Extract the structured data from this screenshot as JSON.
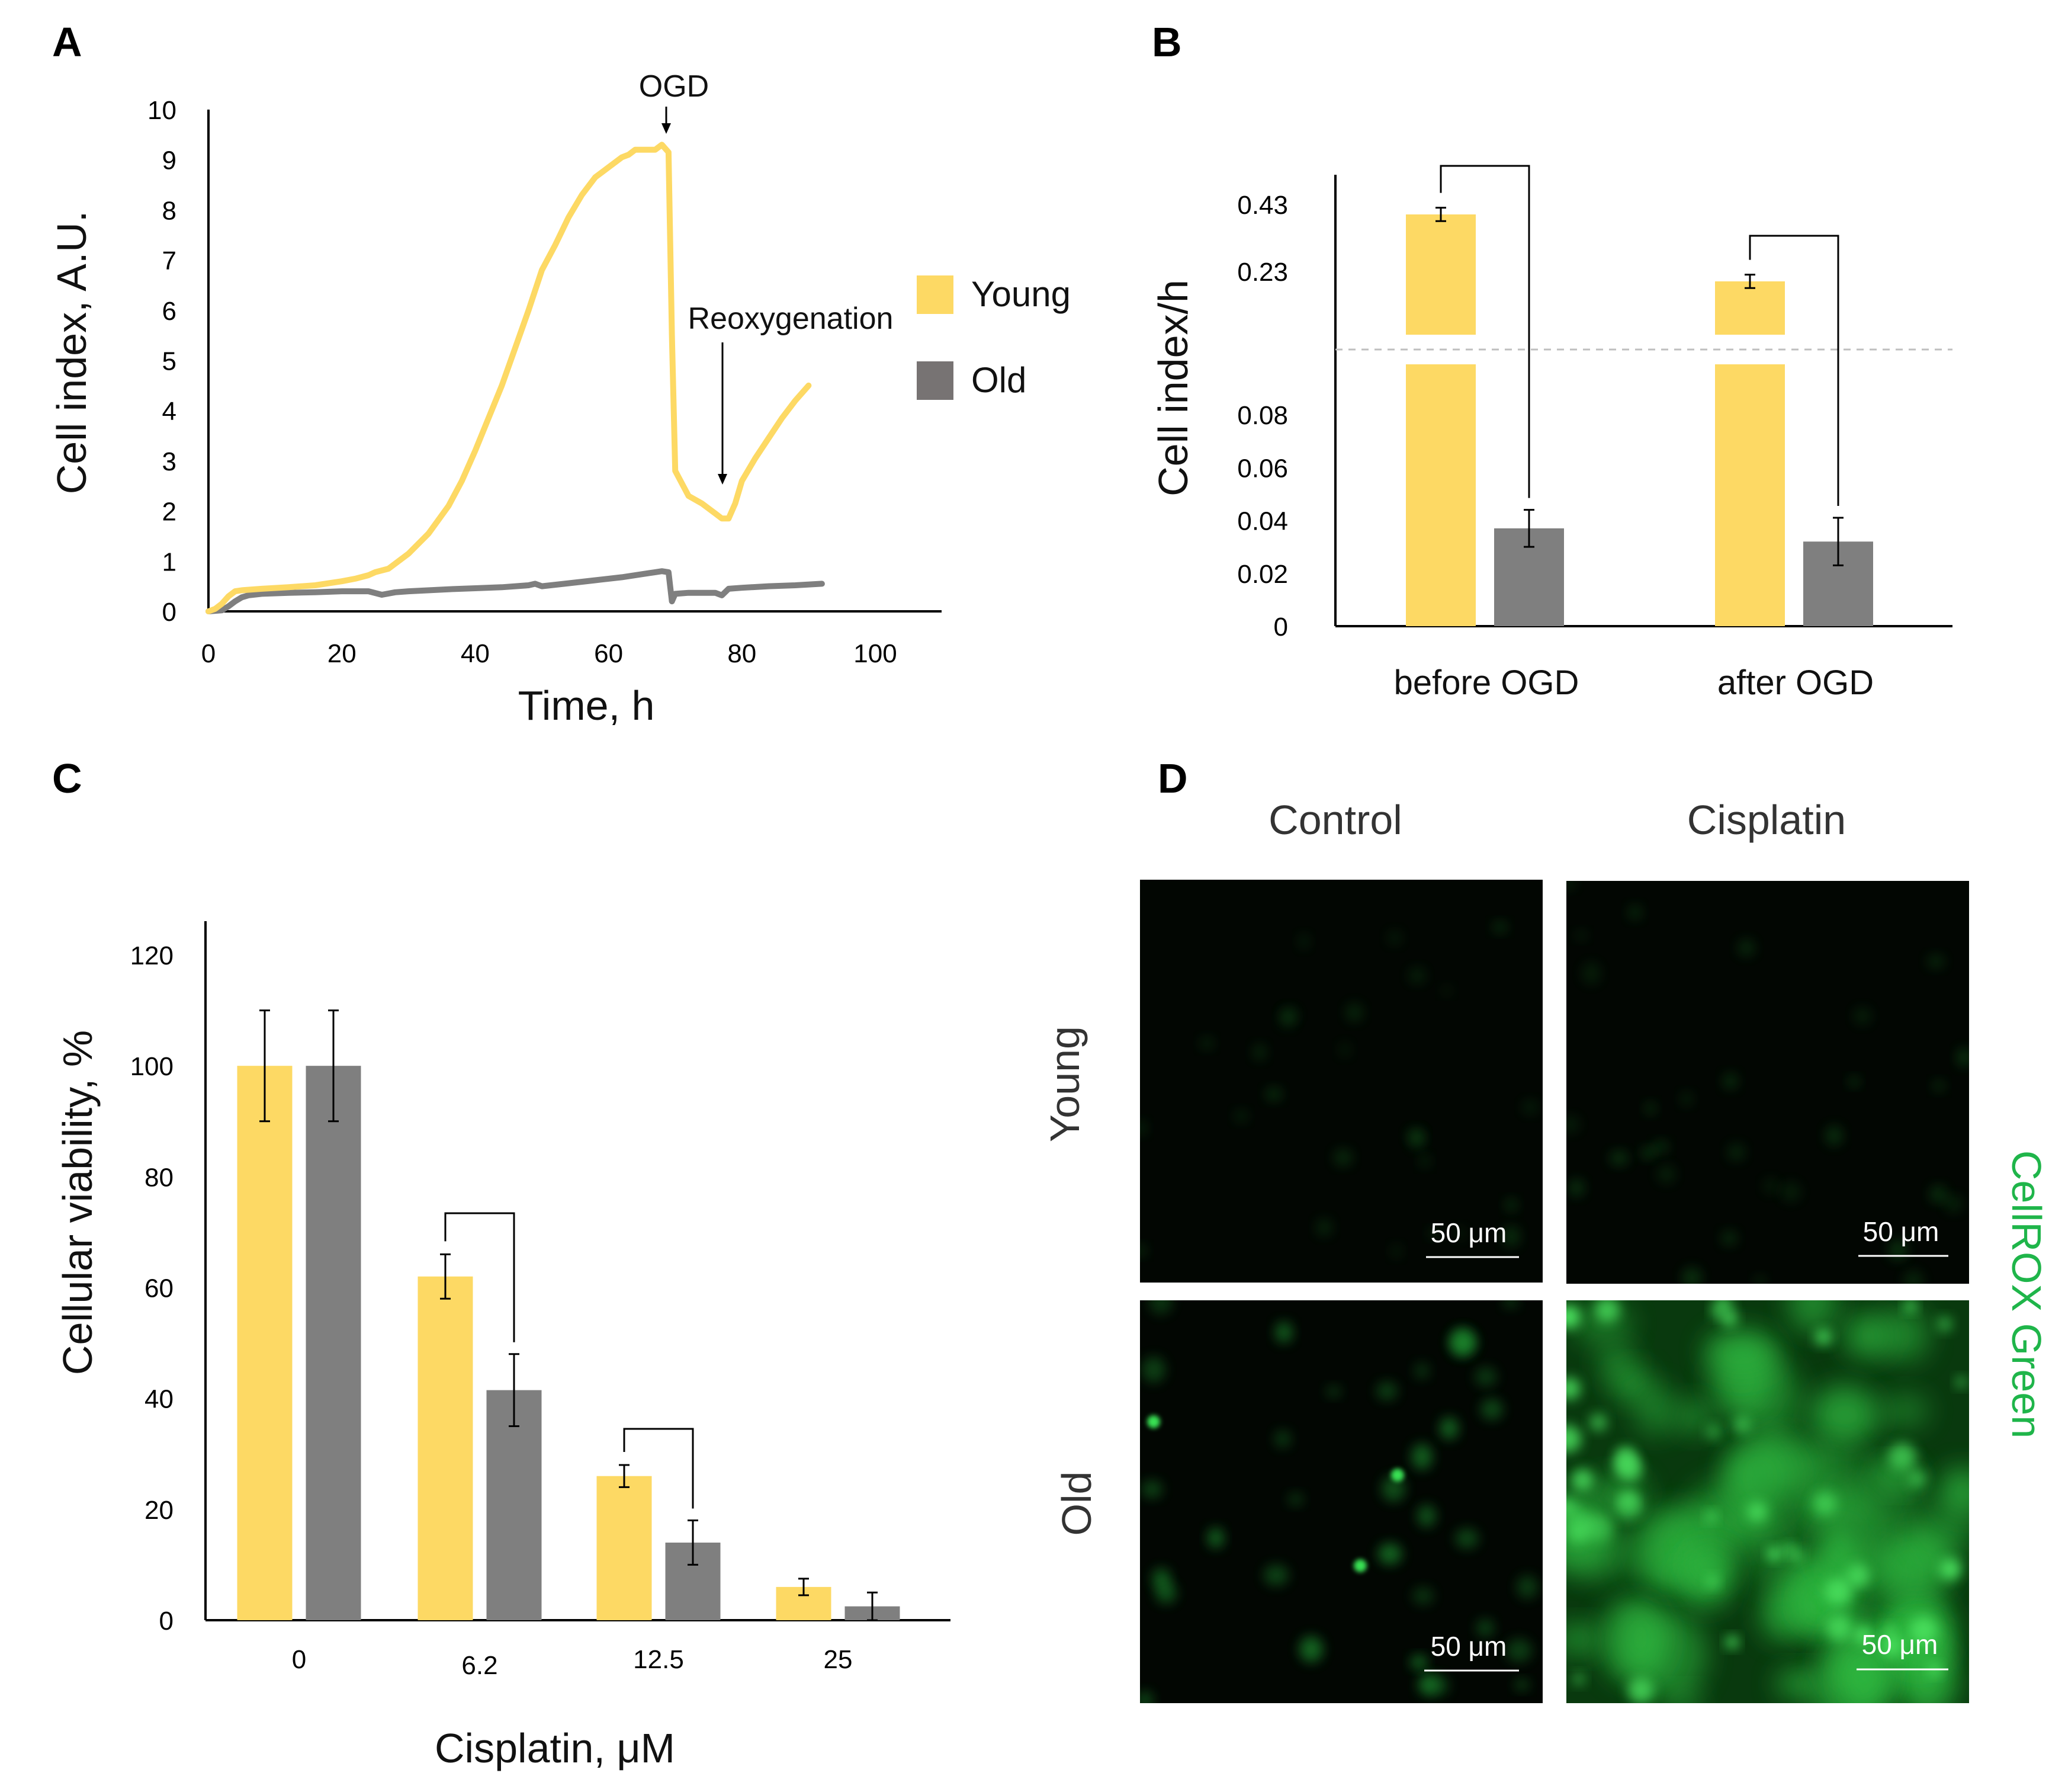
{
  "colors": {
    "young": "#FDD964",
    "old": "#7F7F7F",
    "old_line": "#7F7F7F",
    "young_line": "#FDD964",
    "axis": "#000000",
    "error": "#000000",
    "dashed": "#BFBFBF",
    "cellrox": "#1FB54A",
    "micro_bg": "#020602"
  },
  "panels": {
    "a": "A",
    "b": "B",
    "c": "C",
    "d": "D"
  },
  "chart_data": [
    {
      "id": "A",
      "type": "line",
      "xlabel": "Time, h",
      "ylabel": "Cell index, A.U.",
      "xlim": [
        0,
        110
      ],
      "ylim": [
        0,
        10
      ],
      "xticks": [
        "0",
        "20",
        "40",
        "60",
        "80",
        "100"
      ],
      "yticks": [
        "0",
        "1",
        "2",
        "3",
        "4",
        "5",
        "6",
        "7",
        "8",
        "9",
        "10"
      ],
      "series": [
        {
          "name": "Young",
          "color": "#FDD964",
          "x": [
            0,
            1,
            2,
            3,
            4,
            5,
            8,
            12,
            16,
            20,
            22,
            24,
            25,
            27,
            28,
            30,
            33,
            36,
            38,
            40,
            42,
            44,
            46,
            48,
            50,
            52,
            54,
            56,
            58,
            60,
            62,
            63,
            64,
            66,
            67,
            68,
            69,
            69.5,
            70,
            72,
            74,
            76,
            77,
            78,
            79,
            80,
            82,
            84,
            86,
            88,
            90
          ],
          "y": [
            0,
            0.05,
            0.15,
            0.3,
            0.4,
            0.42,
            0.45,
            0.48,
            0.52,
            0.6,
            0.65,
            0.72,
            0.78,
            0.85,
            0.95,
            1.15,
            1.55,
            2.1,
            2.6,
            3.2,
            3.85,
            4.5,
            5.25,
            6.0,
            6.8,
            7.3,
            7.85,
            8.3,
            8.65,
            8.85,
            9.05,
            9.1,
            9.2,
            9.2,
            9.2,
            9.3,
            9.15,
            5.5,
            2.8,
            2.3,
            2.15,
            1.95,
            1.85,
            1.85,
            2.15,
            2.6,
            3.05,
            3.45,
            3.85,
            4.2,
            4.5
          ]
        },
        {
          "name": "Old",
          "color": "#7F7F7F",
          "x": [
            0,
            2,
            3,
            4,
            5,
            6,
            8,
            12,
            16,
            20,
            24,
            26,
            28,
            30,
            36,
            40,
            44,
            48,
            49,
            50,
            54,
            58,
            62,
            66,
            67,
            68,
            69,
            69.5,
            70,
            72,
            76,
            77,
            78,
            80,
            84,
            88,
            92
          ],
          "y": [
            0,
            0.02,
            0.1,
            0.2,
            0.28,
            0.32,
            0.35,
            0.37,
            0.38,
            0.4,
            0.4,
            0.33,
            0.38,
            0.4,
            0.44,
            0.46,
            0.48,
            0.52,
            0.55,
            0.5,
            0.56,
            0.62,
            0.68,
            0.76,
            0.78,
            0.8,
            0.78,
            0.2,
            0.35,
            0.37,
            0.37,
            0.32,
            0.45,
            0.47,
            0.5,
            0.52,
            0.55
          ]
        }
      ],
      "legend": "right",
      "annotations": [
        {
          "text": "OGD",
          "x": 69
        },
        {
          "text": "Reoxygenation",
          "x": 77
        }
      ]
    },
    {
      "id": "B",
      "type": "bar",
      "ylabel": "Cell index/h",
      "categories": [
        "before OGD",
        "after OGD"
      ],
      "yticks": [
        "0",
        "0.02",
        "0.04",
        "0.06",
        "0.08",
        "0.23",
        "0.43"
      ],
      "y_axis_break": true,
      "series": [
        {
          "name": "Young",
          "values": [
            0.4,
            0.2
          ],
          "errors": [
            0.02,
            0.02
          ],
          "color": "#FDD964"
        },
        {
          "name": "Old",
          "values": [
            0.037,
            0.032
          ],
          "errors": [
            0.007,
            0.009
          ],
          "color": "#7F7F7F"
        }
      ],
      "significance_brackets": [
        {
          "category": "before OGD"
        },
        {
          "category": "after OGD"
        }
      ]
    },
    {
      "id": "C",
      "type": "bar",
      "xlabel": "Cisplatin, μM",
      "ylabel": "Cellular viability, %",
      "ylim": [
        0,
        120
      ],
      "yticks": [
        "0",
        "20",
        "40",
        "60",
        "80",
        "100",
        "120"
      ],
      "categories": [
        "0",
        "6.2",
        "12.5",
        "25"
      ],
      "series": [
        {
          "name": "Young",
          "values": [
            100,
            62,
            26,
            6
          ],
          "errors": [
            10,
            4,
            2,
            1.5
          ],
          "color": "#FDD964"
        },
        {
          "name": "Old",
          "values": [
            100,
            41.5,
            14,
            2.5
          ],
          "errors": [
            10,
            6.5,
            4,
            2.5
          ],
          "color": "#7F7F7F"
        }
      ],
      "significance_brackets": [
        {
          "category": "6.2"
        },
        {
          "category": "12.5"
        }
      ]
    }
  ],
  "panel_a_legend": {
    "young": "Young",
    "old": "Old"
  },
  "panel_d": {
    "col_control": "Control",
    "col_cisplatin": "Cisplatin",
    "row_young": "Young",
    "row_old": "Old",
    "stain": "CellROX Green",
    "scale_bar": "50 μm"
  }
}
